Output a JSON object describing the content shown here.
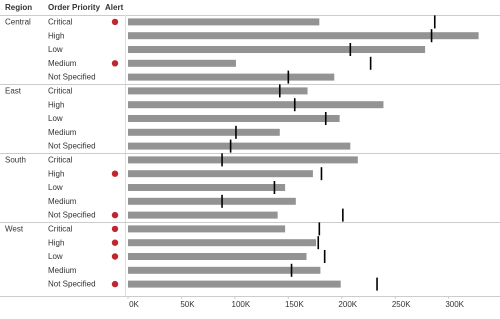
{
  "chart_data": {
    "type": "bullet",
    "columns": [
      "Region",
      "Order Priority",
      "Alert"
    ],
    "groups": [
      {
        "name": "Central",
        "rows": [
          {
            "category": "Critical",
            "value": 179000,
            "target": 287000,
            "alert": true
          },
          {
            "category": "High",
            "value": 328000,
            "target": 284000,
            "alert": false
          },
          {
            "category": "Low",
            "value": 278000,
            "target": 208000,
            "alert": false
          },
          {
            "category": "Medium",
            "value": 101000,
            "target": 227000,
            "alert": true
          },
          {
            "category": "Not Specified",
            "value": 193000,
            "target": 150000,
            "alert": false
          }
        ]
      },
      {
        "name": "East",
        "rows": [
          {
            "category": "Critical",
            "value": 168000,
            "target": 142000,
            "alert": false
          },
          {
            "category": "High",
            "value": 239000,
            "target": 156000,
            "alert": false
          },
          {
            "category": "Low",
            "value": 198000,
            "target": 185000,
            "alert": false
          },
          {
            "category": "Medium",
            "value": 142000,
            "target": 101000,
            "alert": false
          },
          {
            "category": "Not Specified",
            "value": 208000,
            "target": 96000,
            "alert": false
          }
        ]
      },
      {
        "name": "South",
        "rows": [
          {
            "category": "Critical",
            "value": 215000,
            "target": 88000,
            "alert": false
          },
          {
            "category": "High",
            "value": 173000,
            "target": 181000,
            "alert": true
          },
          {
            "category": "Low",
            "value": 147000,
            "target": 137000,
            "alert": false
          },
          {
            "category": "Medium",
            "value": 157000,
            "target": 88000,
            "alert": false
          },
          {
            "category": "Not Specified",
            "value": 140000,
            "target": 201000,
            "alert": true
          }
        ]
      },
      {
        "name": "West",
        "rows": [
          {
            "category": "Critical",
            "value": 147000,
            "target": 179000,
            "alert": true
          },
          {
            "category": "High",
            "value": 176000,
            "target": 178000,
            "alert": true
          },
          {
            "category": "Low",
            "value": 167000,
            "target": 184000,
            "alert": true
          },
          {
            "category": "Medium",
            "value": 180000,
            "target": 153000,
            "alert": false
          },
          {
            "category": "Not Specified",
            "value": 199000,
            "target": 233000,
            "alert": true
          }
        ]
      }
    ],
    "xlim": [
      0,
      334000
    ],
    "xticks": [
      {
        "value": 0,
        "label": "0K"
      },
      {
        "value": 50000,
        "label": "50K"
      },
      {
        "value": 100000,
        "label": "100K"
      },
      {
        "value": 150000,
        "label": "150K"
      },
      {
        "value": 200000,
        "label": "200K"
      },
      {
        "value": 250000,
        "label": "250K"
      },
      {
        "value": 300000,
        "label": "300K"
      }
    ],
    "bar_color": "#939393",
    "target_color": "#000000",
    "alert_color": "#c0262d"
  }
}
